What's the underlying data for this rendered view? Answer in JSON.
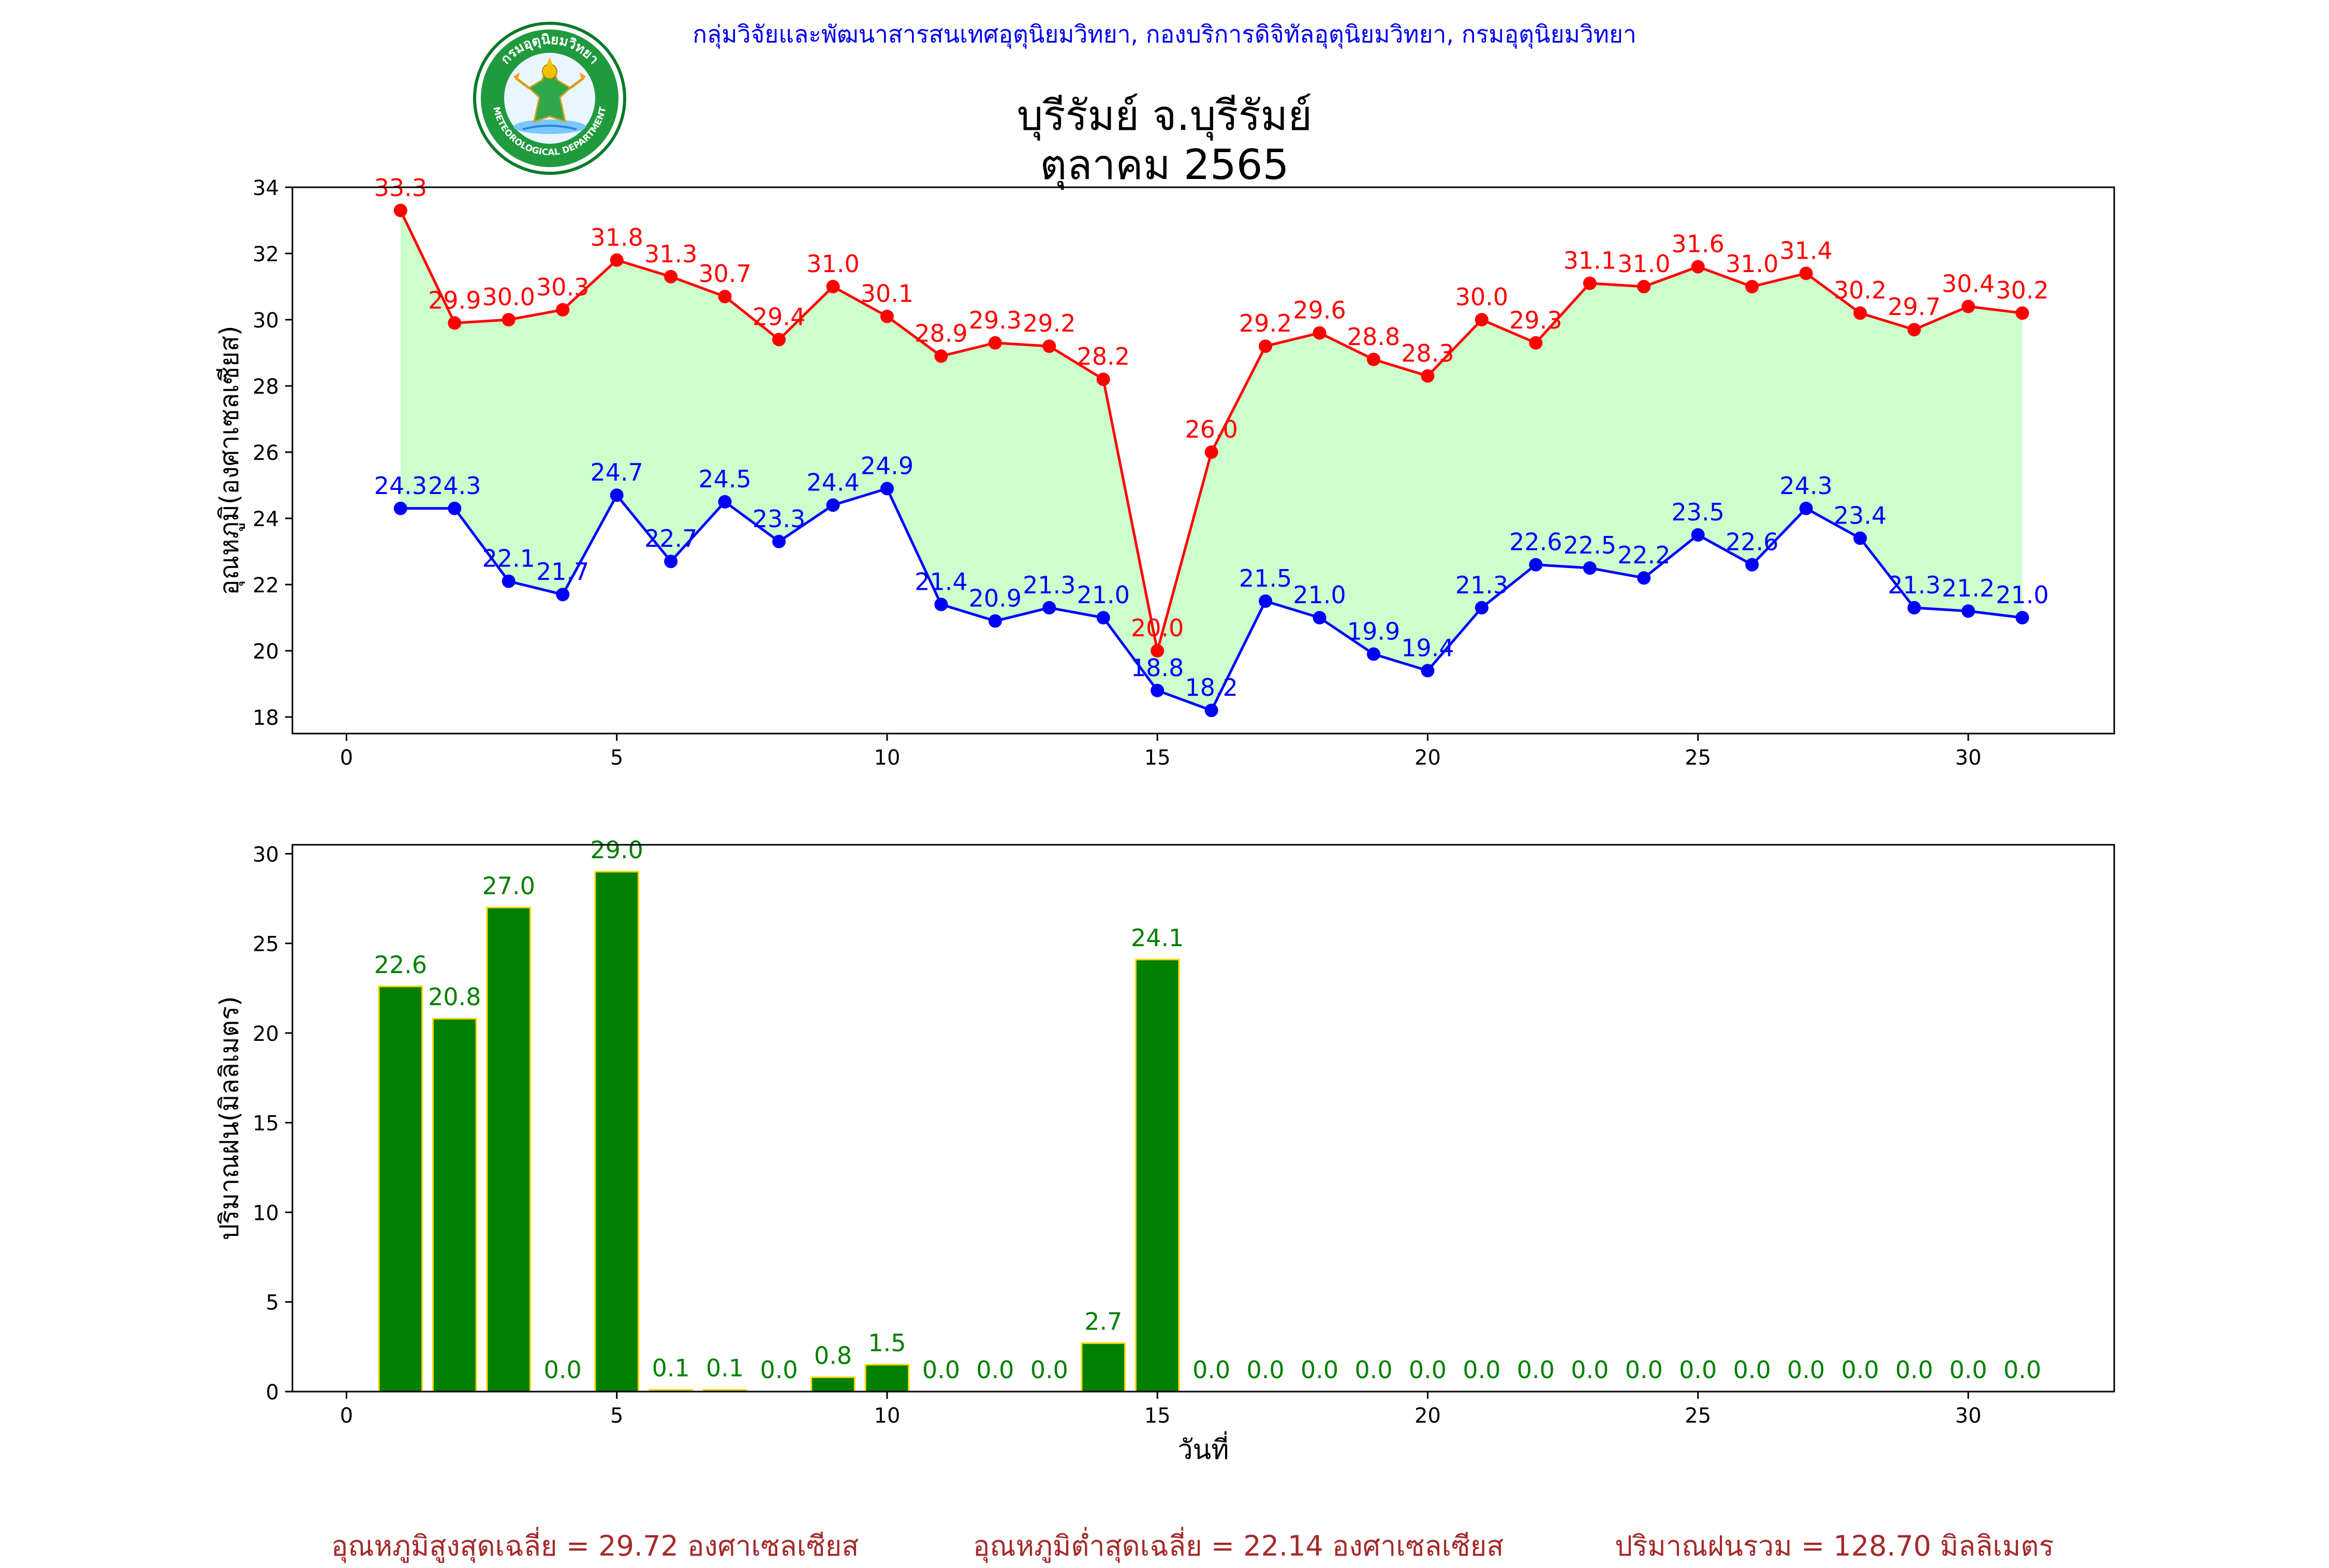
{
  "header": {
    "agency": "กลุ่มวิจัยและพัฒนาสารสนเทศอุตุนิยมวิทยา, กองบริการดิจิทัลอุตุนิยมวิทยา, กรมอุตุนิยมวิทยา",
    "title_line1": "บุรีรัมย์ จ.บุรีรัมย์",
    "title_line2": "ตุลาคม 2565",
    "logo_text_top": "กรมอุตุนิยมวิทยา",
    "logo_text_bottom": "METEOROLOGICAL DEPARTMENT"
  },
  "chart_data": [
    {
      "type": "line",
      "ylabel": "อุณหภูมิ(องศาเซลเซียส)",
      "xlim": [
        -1,
        32.7
      ],
      "ylim": [
        17.5,
        34
      ],
      "xticks": [
        0,
        5,
        10,
        15,
        20,
        25,
        30
      ],
      "yticks": [
        18,
        20,
        22,
        24,
        26,
        28,
        30,
        32,
        34
      ],
      "fill_color": "#ccffcc",
      "x": [
        1,
        2,
        3,
        4,
        5,
        6,
        7,
        8,
        9,
        10,
        11,
        12,
        13,
        14,
        15,
        16,
        17,
        18,
        19,
        20,
        21,
        22,
        23,
        24,
        25,
        26,
        27,
        28,
        29,
        30,
        31
      ],
      "series": [
        {
          "color": "#ff0000",
          "values": [
            33.3,
            29.9,
            30.0,
            30.3,
            31.8,
            31.3,
            30.7,
            29.4,
            31.0,
            30.1,
            28.9,
            29.3,
            29.2,
            28.2,
            20.0,
            26.0,
            29.2,
            29.6,
            28.8,
            28.3,
            30.0,
            29.3,
            31.1,
            31.0,
            31.6,
            31.0,
            31.4,
            30.2,
            29.7,
            30.4,
            30.2
          ],
          "labels": [
            "33.3",
            "29.9",
            "30.0",
            "30.3",
            "31.8",
            "31.3",
            "30.7",
            "29.4",
            "31.0",
            "30.1",
            "28.9",
            "29.3",
            "29.2",
            "28.2",
            "20.0",
            "26.0",
            "29.2",
            "29.6",
            "28.8",
            "28.3",
            "30.0",
            "29.3",
            "31.1",
            "31.0",
            "31.6",
            "31.0",
            "31.4",
            "30.2",
            "29.7",
            "30.4",
            "30.2"
          ]
        },
        {
          "color": "#0000ff",
          "values": [
            24.3,
            24.3,
            22.1,
            21.7,
            24.7,
            22.7,
            24.5,
            23.3,
            24.4,
            24.9,
            21.4,
            20.9,
            21.3,
            21.0,
            18.8,
            18.2,
            21.5,
            21.0,
            19.9,
            19.4,
            21.3,
            22.6,
            22.5,
            22.2,
            23.5,
            22.6,
            24.3,
            23.4,
            21.3,
            21.2,
            21.0
          ],
          "labels": [
            "24.3",
            "24.3",
            "22.1",
            "21.7",
            "24.7",
            "22.7",
            "24.5",
            "23.3",
            "24.4",
            "24.9",
            "21.4",
            "20.9",
            "21.3",
            "21.0",
            "18.8",
            "18.2",
            "21.5",
            "21.0",
            "19.9",
            "19.4",
            "21.3",
            "22.6",
            "22.5",
            "22.2",
            "23.5",
            "22.6",
            "24.3",
            "23.4",
            "21.3",
            "21.2",
            "21.0"
          ]
        }
      ]
    },
    {
      "type": "bar",
      "ylabel": "ปริมาณฝน(มิลลิเมตร)",
      "xlabel": "วันที่",
      "xlim": [
        -1,
        32.7
      ],
      "ylim": [
        0,
        30.5
      ],
      "xticks": [
        0,
        5,
        10,
        15,
        20,
        25,
        30
      ],
      "yticks": [
        0,
        5,
        10,
        15,
        20,
        25,
        30
      ],
      "bar_color": "#008000",
      "bar_edge": "#ffd700",
      "x": [
        1,
        2,
        3,
        4,
        5,
        6,
        7,
        8,
        9,
        10,
        11,
        12,
        13,
        14,
        15,
        16,
        17,
        18,
        19,
        20,
        21,
        22,
        23,
        24,
        25,
        26,
        27,
        28,
        29,
        30,
        31
      ],
      "values": [
        22.6,
        20.8,
        27.0,
        0.0,
        29.0,
        0.1,
        0.1,
        0.0,
        0.8,
        1.5,
        0.0,
        0.0,
        0.0,
        2.7,
        24.1,
        0.0,
        0.0,
        0.0,
        0.0,
        0.0,
        0.0,
        0.0,
        0.0,
        0.0,
        0.0,
        0.0,
        0.0,
        0.0,
        0.0,
        0.0,
        0.0
      ],
      "labels": [
        "22.6",
        "20.8",
        "27.0",
        "0.0",
        "29.0",
        "0.1",
        "0.1",
        "0.0",
        "0.8",
        "1.5",
        "0.0",
        "0.0",
        "0.0",
        "2.7",
        "24.1",
        "0.0",
        "0.0",
        "0.0",
        "0.0",
        "0.0",
        "0.0",
        "0.0",
        "0.0",
        "0.0",
        "0.0",
        "0.0",
        "0.0",
        "0.0",
        "0.0",
        "0.0",
        "0.0"
      ]
    }
  ],
  "footer": {
    "avg_max": "อุณหภูมิสูงสุดเฉลี่ย = 29.72 องศาเซลเซียส",
    "avg_min": "อุณหภูมิต่ำสุดเฉลี่ย = 22.14 องศาเซลเซียส",
    "total_rain": "ปริมาณฝนรวม = 128.70 มิลลิเมตร"
  }
}
